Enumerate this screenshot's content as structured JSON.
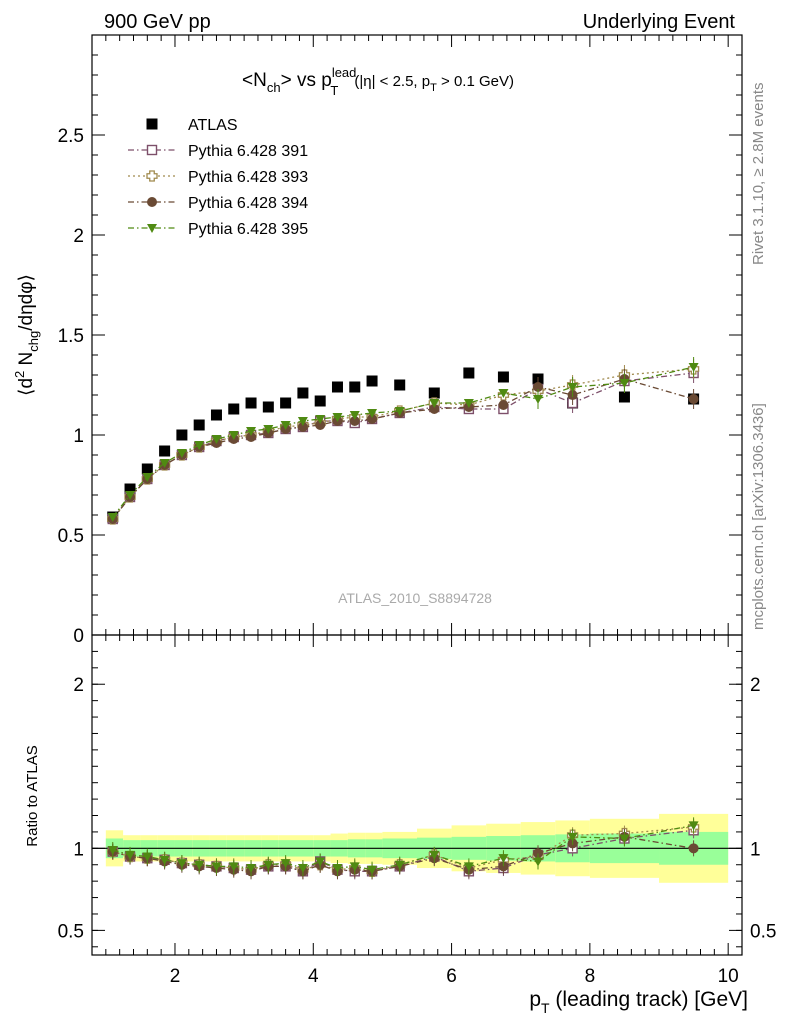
{
  "header": {
    "left": "900 GeV pp",
    "right": "Underlying Event"
  },
  "side_labels": {
    "rivet": "Rivet 3.1.10, ≥ 2.8M events",
    "mcplots": "mcplots.cern.ch [arXiv:1306.3436]"
  },
  "chart_data": [
    {
      "type": "scatter",
      "panel": "main",
      "title_parts": {
        "nch": "N",
        "nch_sub": "ch",
        "vs": "> vs p",
        "pt_sup": "lead",
        "pt_sub": "T",
        "cond1": "(|η| < 2.5, p",
        "cond_sub": "T",
        "cond2": " > 0.1 GeV)"
      },
      "ylabel_parts": {
        "open": "⟨d",
        "sup2": "2",
        "n": " N",
        "sub": "chg",
        "rest": "/dηdφ⟩"
      },
      "watermark": "ATLAS_2010_S8894728",
      "xlim": [
        0.8,
        10.2
      ],
      "ylim": [
        0,
        3.0
      ],
      "yticks": [
        0,
        0.5,
        1,
        1.5,
        2,
        2.5
      ],
      "ytick_labels": [
        "0",
        "0.5",
        "1",
        "1.5",
        "2",
        "2.5"
      ],
      "legend_position": "top-left",
      "x": [
        1.1,
        1.35,
        1.6,
        1.85,
        2.1,
        2.35,
        2.6,
        2.85,
        3.1,
        3.35,
        3.6,
        3.85,
        4.1,
        4.35,
        4.6,
        4.85,
        5.25,
        5.75,
        6.25,
        6.75,
        7.25,
        7.75,
        8.5,
        9.5
      ],
      "series": [
        {
          "name": "ATLAS",
          "color": "#000000",
          "marker": "square-filled",
          "line": "none",
          "values": [
            0.59,
            0.73,
            0.83,
            0.92,
            1.0,
            1.05,
            1.1,
            1.13,
            1.16,
            1.14,
            1.16,
            1.21,
            1.17,
            1.24,
            1.24,
            1.27,
            1.25,
            1.21,
            1.31,
            1.29,
            1.28,
            1.16,
            1.19,
            1.18
          ]
        },
        {
          "name": "Pythia 6.428 391",
          "color": "#7d4f6a",
          "marker": "square-open",
          "line": "dash-dot",
          "values": [
            0.58,
            0.69,
            0.78,
            0.85,
            0.9,
            0.94,
            0.97,
            0.99,
            1.0,
            1.01,
            1.03,
            1.04,
            1.07,
            1.07,
            1.06,
            1.08,
            1.11,
            1.14,
            1.13,
            1.13,
            1.23,
            1.16,
            1.27,
            1.31
          ]
        },
        {
          "name": "Pythia 6.428 393",
          "color": "#a08a4e",
          "marker": "cross-open",
          "line": "dot",
          "values": [
            0.58,
            0.69,
            0.78,
            0.85,
            0.9,
            0.94,
            0.97,
            0.99,
            1.0,
            1.02,
            1.04,
            1.05,
            1.06,
            1.08,
            1.09,
            1.09,
            1.12,
            1.16,
            1.15,
            1.2,
            1.22,
            1.25,
            1.3,
            1.33
          ]
        },
        {
          "name": "Pythia 6.428 394",
          "color": "#6a4a34",
          "marker": "circle-filled",
          "line": "dash-dot",
          "values": [
            0.58,
            0.69,
            0.78,
            0.85,
            0.9,
            0.94,
            0.96,
            0.98,
            0.99,
            1.01,
            1.03,
            1.04,
            1.05,
            1.07,
            1.07,
            1.08,
            1.11,
            1.13,
            1.14,
            1.15,
            1.24,
            1.2,
            1.28,
            1.18
          ]
        },
        {
          "name": "Pythia 6.428 395",
          "color": "#4f8a12",
          "marker": "triangle-down-filled",
          "line": "dash-dot",
          "values": [
            0.59,
            0.7,
            0.79,
            0.86,
            0.91,
            0.95,
            0.98,
            1.0,
            1.02,
            1.03,
            1.05,
            1.07,
            1.08,
            1.09,
            1.1,
            1.11,
            1.12,
            1.16,
            1.16,
            1.21,
            1.18,
            1.24,
            1.26,
            1.34
          ]
        }
      ]
    },
    {
      "type": "scatter",
      "panel": "ratio",
      "ylabel": "Ratio to ATLAS",
      "xlabel_parts": {
        "p": "p",
        "sub": "T",
        "rest": " (leading track) [GeV]"
      },
      "xlim": [
        0.8,
        10.2
      ],
      "ylim": [
        0.35,
        2.3
      ],
      "xticks": [
        2,
        4,
        6,
        8,
        10
      ],
      "xtick_labels": [
        "2",
        "4",
        "6",
        "8",
        "10"
      ],
      "yticks": [
        0.5,
        1,
        2
      ],
      "ytick_labels": [
        "0.5",
        "1",
        "2"
      ],
      "reference_line": 1.0,
      "band_colors": {
        "stat": "#99ff99",
        "total": "#ffff99"
      },
      "bands": {
        "edges": [
          1.0,
          1.25,
          1.5,
          1.75,
          2.0,
          2.25,
          2.5,
          2.75,
          3.0,
          3.25,
          3.5,
          3.75,
          4.0,
          4.25,
          4.5,
          4.75,
          5.0,
          5.5,
          6.0,
          6.5,
          7.0,
          7.5,
          8.0,
          9.0,
          10.0
        ],
        "stat": [
          0.06,
          0.05,
          0.05,
          0.05,
          0.05,
          0.05,
          0.05,
          0.05,
          0.05,
          0.05,
          0.05,
          0.05,
          0.05,
          0.05,
          0.055,
          0.055,
          0.06,
          0.065,
          0.07,
          0.075,
          0.08,
          0.085,
          0.09,
          0.1
        ],
        "total": [
          0.11,
          0.08,
          0.08,
          0.08,
          0.08,
          0.08,
          0.08,
          0.08,
          0.08,
          0.08,
          0.08,
          0.08,
          0.08,
          0.09,
          0.095,
          0.095,
          0.1,
          0.12,
          0.14,
          0.15,
          0.16,
          0.17,
          0.18,
          0.21
        ]
      },
      "x": [
        1.1,
        1.35,
        1.6,
        1.85,
        2.1,
        2.35,
        2.6,
        2.85,
        3.1,
        3.35,
        3.6,
        3.85,
        4.1,
        4.35,
        4.6,
        4.85,
        5.25,
        5.75,
        6.25,
        6.75,
        7.25,
        7.75,
        8.5,
        9.5
      ],
      "series": [
        {
          "name": "Pythia 6.428 391",
          "values": [
            0.98,
            0.95,
            0.94,
            0.93,
            0.91,
            0.9,
            0.89,
            0.88,
            0.87,
            0.89,
            0.89,
            0.86,
            0.92,
            0.87,
            0.86,
            0.86,
            0.89,
            0.95,
            0.86,
            0.88,
            0.96,
            1.0,
            1.06,
            1.11
          ]
        },
        {
          "name": "Pythia 6.428 393",
          "values": [
            0.98,
            0.95,
            0.94,
            0.93,
            0.91,
            0.9,
            0.89,
            0.88,
            0.87,
            0.9,
            0.9,
            0.87,
            0.9,
            0.87,
            0.88,
            0.86,
            0.9,
            0.96,
            0.88,
            0.93,
            0.95,
            1.08,
            1.09,
            1.13
          ]
        },
        {
          "name": "Pythia 6.428 394",
          "values": [
            0.98,
            0.95,
            0.94,
            0.92,
            0.9,
            0.89,
            0.88,
            0.87,
            0.86,
            0.89,
            0.89,
            0.86,
            0.9,
            0.86,
            0.87,
            0.86,
            0.89,
            0.94,
            0.87,
            0.89,
            0.97,
            1.03,
            1.07,
            1.0
          ]
        },
        {
          "name": "Pythia 6.428 395",
          "values": [
            0.99,
            0.96,
            0.95,
            0.93,
            0.91,
            0.9,
            0.89,
            0.89,
            0.88,
            0.9,
            0.91,
            0.88,
            0.92,
            0.88,
            0.89,
            0.87,
            0.9,
            0.96,
            0.89,
            0.94,
            0.92,
            1.07,
            1.06,
            1.14
          ]
        }
      ]
    }
  ]
}
